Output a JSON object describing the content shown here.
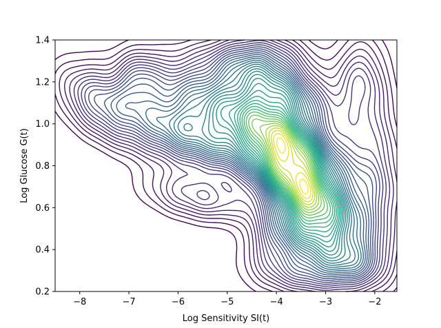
{
  "chart_data": {
    "type": "contour",
    "title": "",
    "xlabel": "Log Sensitivity SI(t)",
    "ylabel": "Log Glucose G(t)",
    "xlim": [
      -8.5,
      -1.55
    ],
    "ylim": [
      0.2,
      1.4
    ],
    "xticks": [
      -8,
      -7,
      -6,
      -5,
      -4,
      -3,
      -2
    ],
    "xtick_labels": [
      "−8",
      "−7",
      "−6",
      "−5",
      "−4",
      "−3",
      "−2"
    ],
    "yticks": [
      0.2,
      0.4,
      0.6,
      0.8,
      1.0,
      1.2,
      1.4
    ],
    "ytick_labels": [
      "0.2",
      "0.4",
      "0.6",
      "0.8",
      "1.0",
      "1.2",
      "1.4"
    ],
    "colormap": "viridis",
    "num_levels": 40,
    "density_peak": {
      "x": -3.6,
      "y": 0.78
    },
    "grid": false,
    "legend": "none",
    "components": [
      {
        "x": -3.6,
        "y": 0.78,
        "sx": 0.7,
        "sy": 0.2,
        "rho": -0.55,
        "w": 1.0
      },
      {
        "x": -5.0,
        "y": 1.05,
        "sx": 1.1,
        "sy": 0.16,
        "rho": -0.35,
        "w": 0.55
      },
      {
        "x": -3.2,
        "y": 0.5,
        "sx": 0.55,
        "sy": 0.13,
        "rho": -0.3,
        "w": 0.45
      },
      {
        "x": -6.0,
        "y": 0.95,
        "sx": 0.9,
        "sy": 0.12,
        "rho": -0.55,
        "w": 0.3
      },
      {
        "x": -7.6,
        "y": 1.1,
        "sx": 0.55,
        "sy": 0.12,
        "rho": -0.45,
        "w": 0.25
      },
      {
        "x": -5.6,
        "y": 0.65,
        "sx": 0.7,
        "sy": 0.08,
        "rho": -0.4,
        "w": 0.22
      },
      {
        "x": -4.4,
        "y": 1.3,
        "sx": 0.6,
        "sy": 0.09,
        "rho": 0.0,
        "w": 0.3
      },
      {
        "x": -6.8,
        "y": 1.2,
        "sx": 0.3,
        "sy": 0.09,
        "rho": 0.0,
        "w": 0.2
      },
      {
        "x": -2.3,
        "y": 1.2,
        "sx": 0.35,
        "sy": 0.15,
        "rho": 0.0,
        "w": 0.2
      },
      {
        "x": -2.1,
        "y": 0.7,
        "sx": 0.45,
        "sy": 0.25,
        "rho": 0.0,
        "w": 0.25
      },
      {
        "x": -3.3,
        "y": 0.3,
        "sx": 0.75,
        "sy": 0.08,
        "rho": 0.0,
        "w": 0.25
      },
      {
        "x": -2.4,
        "y": 0.35,
        "sx": 0.4,
        "sy": 0.08,
        "rho": 0.0,
        "w": 0.15
      },
      {
        "x": -4.0,
        "y": 0.45,
        "sx": 0.4,
        "sy": 0.09,
        "rho": 0.0,
        "w": 0.18
      },
      {
        "x": -3.8,
        "y": 1.15,
        "sx": 0.6,
        "sy": 0.1,
        "rho": -0.3,
        "w": 0.3
      }
    ]
  }
}
